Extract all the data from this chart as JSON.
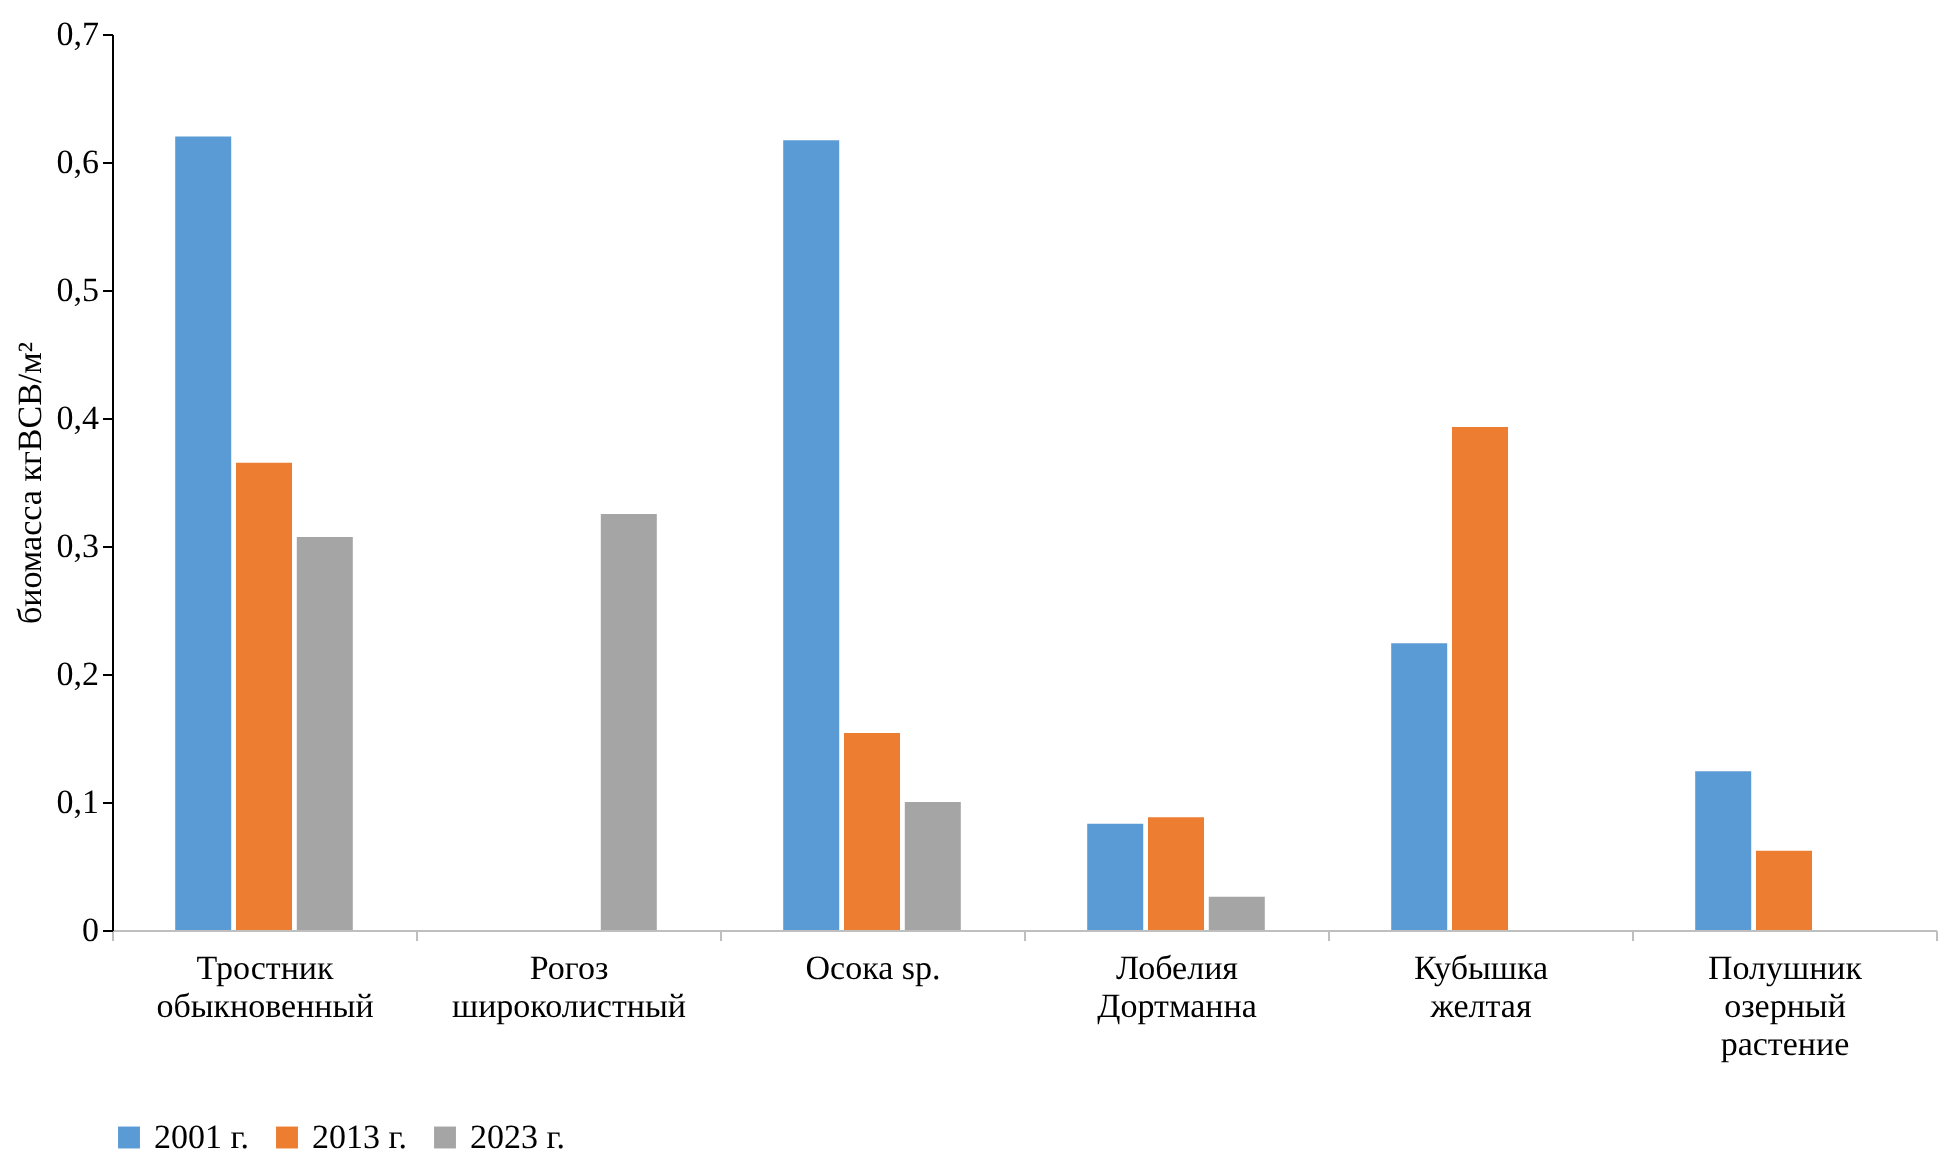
{
  "chart_data": {
    "type": "bar",
    "ylabel": "биомасса кгВСВ/м²",
    "categories": [
      "Тростник\nобыкновенный",
      "Рогоз\nшироколистный",
      "Осока sp.",
      "Лобелия\nДортманна",
      "Кубышка\nжелтая",
      "Полушник\nозерный\nрастение"
    ],
    "series": [
      {
        "name": "2001 г.",
        "color": "#5b9bd5",
        "values": [
          0.62,
          null,
          0.617,
          0.083,
          0.224,
          0.124
        ]
      },
      {
        "name": "2013 г.",
        "color": "#ed7d31",
        "values": [
          0.365,
          null,
          0.154,
          0.088,
          0.393,
          0.062
        ]
      },
      {
        "name": "2023 г.",
        "color": "#a5a5a5",
        "values": [
          0.307,
          0.325,
          0.1,
          0.026,
          null,
          null
        ]
      }
    ],
    "ylim": [
      0,
      0.7
    ],
    "yticks": [
      0,
      {
        "value": 0.1,
        "label": "0,1"
      },
      {
        "value": 0.2,
        "label": "0,2"
      },
      {
        "value": 0.3,
        "label": "0,3"
      },
      {
        "value": 0.4,
        "label": "0,4"
      },
      {
        "value": 0.5,
        "label": "0,5"
      },
      {
        "value": 0.6,
        "label": "0,6"
      },
      {
        "value": 0.7,
        "label": "0,7"
      }
    ],
    "grid": false,
    "legend": "bottom"
  }
}
